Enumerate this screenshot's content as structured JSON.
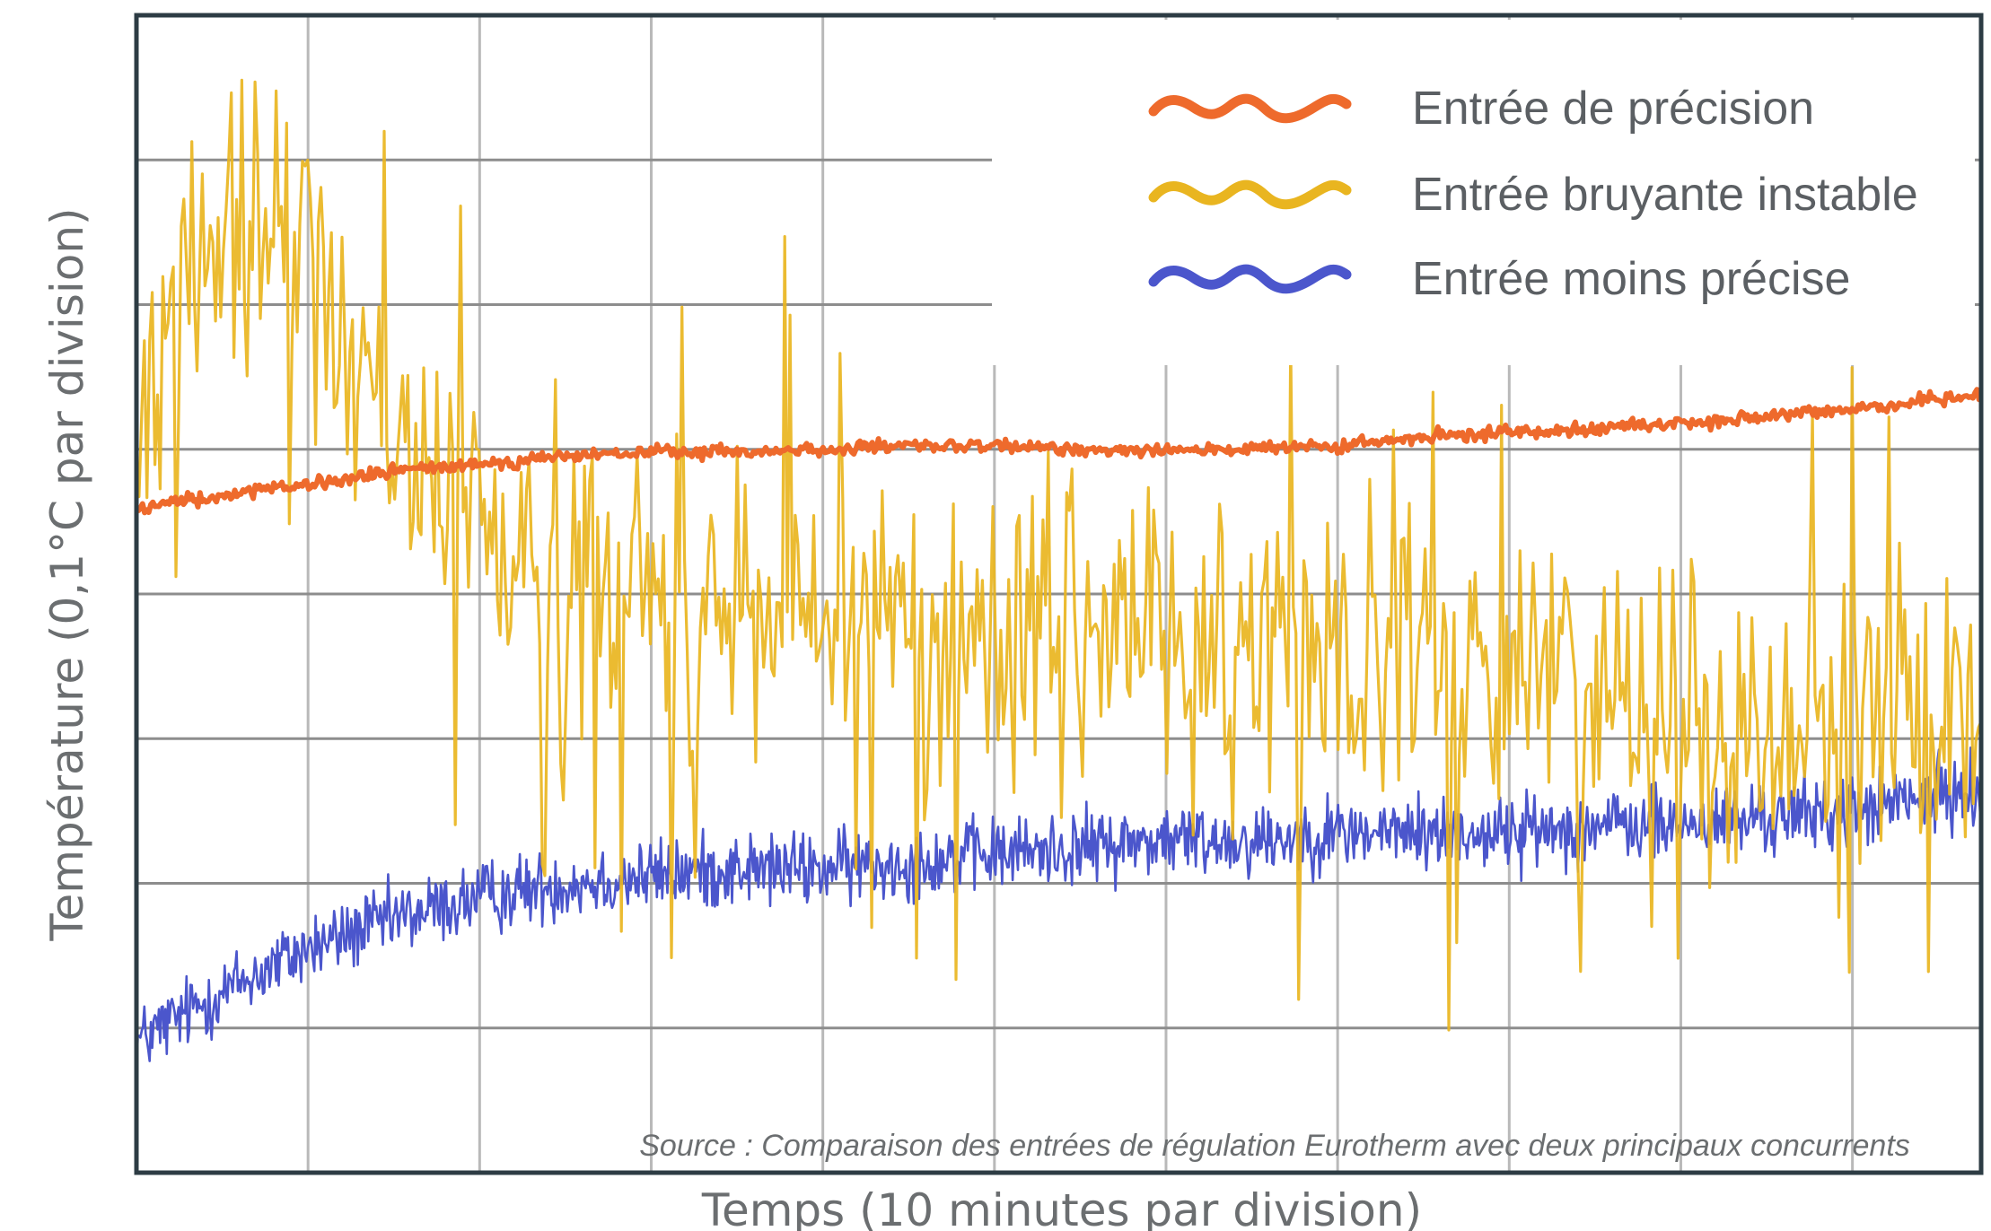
{
  "chart_data": {
    "type": "line",
    "xlabel": "Temps (10 minutes par division)",
    "ylabel": "Température (0,1°C par division)",
    "x_divisions": 11,
    "y_divisions": 8,
    "xlim": [
      0,
      10.75
    ],
    "ylim": [
      0,
      8
    ],
    "grid": true,
    "legend_position": "top-right",
    "source": "Source : Comparaison des entrées de régulation Eurotherm avec deux principaux concurrents",
    "series": [
      {
        "name": "Entrée de précision",
        "color": "#ee6a2c",
        "x": [
          0,
          0.5,
          1,
          1.5,
          2,
          2.5,
          3,
          3.5,
          4,
          4.5,
          5,
          5.5,
          6,
          6.5,
          7,
          7.5,
          8,
          8.5,
          9,
          9.5,
          10,
          10.75
        ],
        "y": [
          4.6,
          4.68,
          4.75,
          4.85,
          4.9,
          4.95,
          4.98,
          4.98,
          5.0,
          5.02,
          5.02,
          5.0,
          5.0,
          5.0,
          5.02,
          5.08,
          5.12,
          5.15,
          5.18,
          5.22,
          5.28,
          5.38
        ]
      },
      {
        "name": "Entrée bruyante instable",
        "color": "#e9b520",
        "x": [
          0,
          0.5,
          1,
          1.5,
          2,
          2.5,
          3,
          3.5,
          4,
          4.5,
          5,
          5.5,
          6,
          6.5,
          7,
          7.5,
          8,
          8.5,
          9,
          9.5,
          10,
          10.75
        ],
        "y": [
          5.1,
          6.6,
          6.2,
          5.0,
          4.5,
          4.2,
          4.0,
          3.8,
          3.8,
          3.9,
          3.7,
          3.8,
          3.8,
          3.7,
          3.7,
          3.5,
          3.5,
          3.4,
          3.2,
          3.0,
          3.2,
          3.3
        ]
      },
      {
        "name": "Entrée moins précise",
        "color": "#4b56cc",
        "x": [
          0,
          0.5,
          1,
          1.5,
          2,
          2.5,
          3,
          3.5,
          4,
          4.5,
          5,
          5.5,
          6,
          6.5,
          7,
          7.5,
          8,
          8.5,
          9,
          9.5,
          10,
          10.75
        ],
        "y": [
          0.9,
          1.25,
          1.55,
          1.75,
          1.9,
          2.0,
          2.05,
          2.1,
          2.1,
          2.15,
          2.2,
          2.25,
          2.3,
          2.3,
          2.35,
          2.35,
          2.35,
          2.4,
          2.4,
          2.45,
          2.5,
          2.65
        ]
      }
    ]
  }
}
